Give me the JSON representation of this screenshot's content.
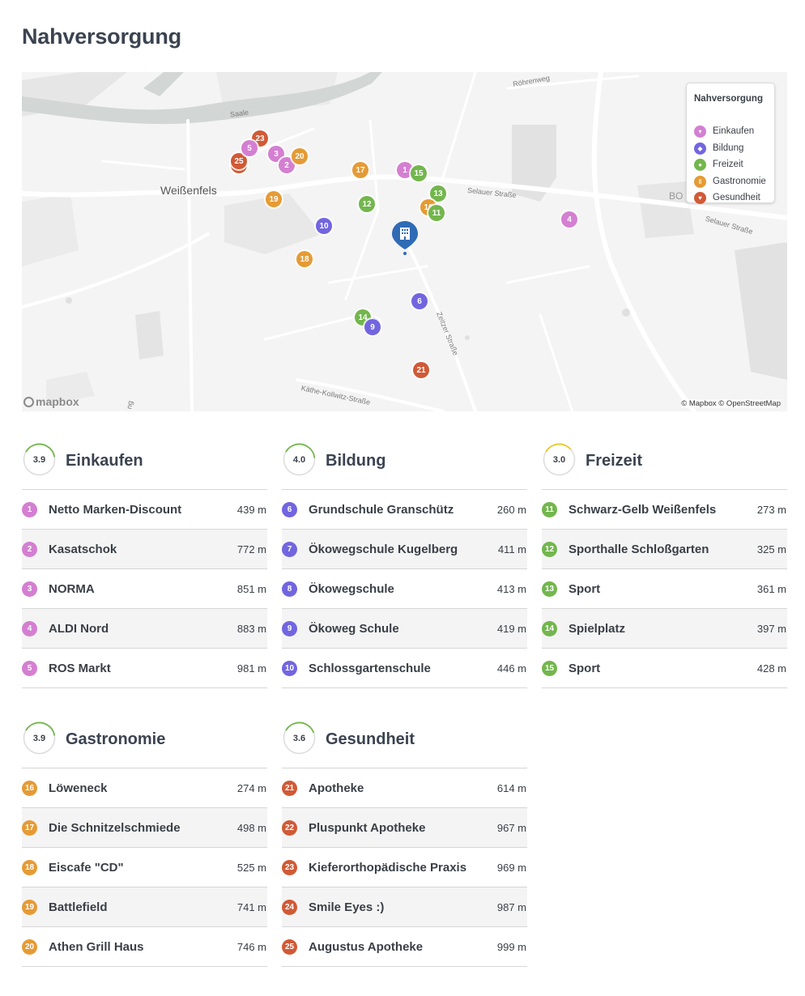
{
  "page": {
    "title": "Nahversorgung"
  },
  "colors": {
    "einkaufen": "#d47fd1",
    "bildung": "#7265e0",
    "freizeit": "#73b64d",
    "gastronomie": "#e59b35",
    "gesundheit": "#d05a36",
    "home": "#2f6bb5"
  },
  "map": {
    "labels": {
      "saale": "Saale",
      "weissenfels": "Weißenfels",
      "roehrenweg": "Röhrenweg",
      "selauer1": "Selauer Straße",
      "selauer2": "Selauer Straße",
      "zeitzer": "Zeitzer Straße",
      "kaethe": "Käthe-Kollwitz-Straße",
      "bo": "BO",
      "edge": "ng"
    },
    "attribution": "© Mapbox © OpenStreetMap",
    "logo_text": "mapbox",
    "home_icon": "building-icon",
    "legend": {
      "title": "Nahversorgung",
      "items": [
        {
          "label": "Einkaufen",
          "icon": "cart-icon"
        },
        {
          "label": "Bildung",
          "icon": "graduation-cap-icon"
        },
        {
          "label": "Freizeit",
          "icon": "leaf-icon"
        },
        {
          "label": "Gastronomie",
          "icon": "restaurant-icon"
        },
        {
          "label": "Gesundheit",
          "icon": "heart-icon"
        }
      ]
    }
  },
  "categories": [
    {
      "title": "Einkaufen",
      "score": "3.9",
      "score_value": 3.9,
      "color_key": "einkaufen",
      "items": [
        {
          "num": "1",
          "name": "Netto Marken-Discount",
          "dist": "439 m"
        },
        {
          "num": "2",
          "name": "Kasatschok",
          "dist": "772 m"
        },
        {
          "num": "3",
          "name": "NORMA",
          "dist": "851 m"
        },
        {
          "num": "4",
          "name": "ALDI Nord",
          "dist": "883 m"
        },
        {
          "num": "5",
          "name": "ROS Markt",
          "dist": "981 m"
        }
      ]
    },
    {
      "title": "Bildung",
      "score": "4.0",
      "score_value": 4.0,
      "color_key": "bildung",
      "items": [
        {
          "num": "6",
          "name": "Grundschule Granschütz",
          "dist": "260 m"
        },
        {
          "num": "7",
          "name": "Ökowegschule Kugelberg",
          "dist": "411 m"
        },
        {
          "num": "8",
          "name": "Ökowegschule",
          "dist": "413 m"
        },
        {
          "num": "9",
          "name": "Ökoweg Schule",
          "dist": "419 m"
        },
        {
          "num": "10",
          "name": "Schlossgartenschule",
          "dist": "446 m"
        }
      ]
    },
    {
      "title": "Freizeit",
      "score": "3.0",
      "score_value": 3.0,
      "color_key": "freizeit",
      "items": [
        {
          "num": "11",
          "name": "Schwarz-Gelb Weißenfels",
          "dist": "273 m"
        },
        {
          "num": "12",
          "name": "Sporthalle Schloßgarten",
          "dist": "325 m"
        },
        {
          "num": "13",
          "name": "Sport",
          "dist": "361 m"
        },
        {
          "num": "14",
          "name": "Spielplatz",
          "dist": "397 m"
        },
        {
          "num": "15",
          "name": "Sport",
          "dist": "428 m"
        }
      ]
    },
    {
      "title": "Gastronomie",
      "score": "3.9",
      "score_value": 3.9,
      "color_key": "gastronomie",
      "items": [
        {
          "num": "16",
          "name": "Löweneck",
          "dist": "274 m"
        },
        {
          "num": "17",
          "name": "Die Schnitzelschmiede",
          "dist": "498 m"
        },
        {
          "num": "18",
          "name": "Eiscafe \"CD\"",
          "dist": "525 m"
        },
        {
          "num": "19",
          "name": "Battlefield",
          "dist": "741 m"
        },
        {
          "num": "20",
          "name": "Athen Grill Haus",
          "dist": "746 m"
        }
      ]
    },
    {
      "title": "Gesundheit",
      "score": "3.6",
      "score_value": 3.6,
      "color_key": "gesundheit",
      "items": [
        {
          "num": "21",
          "name": "Apotheke",
          "dist": "614 m"
        },
        {
          "num": "22",
          "name": "Pluspunkt Apotheke",
          "dist": "967 m"
        },
        {
          "num": "23",
          "name": "Kieferorthopädische Praxis",
          "dist": "969 m"
        },
        {
          "num": "24",
          "name": "Smile Eyes :)",
          "dist": "987 m"
        },
        {
          "num": "25",
          "name": "Augustus Apotheke",
          "dist": "999 m"
        }
      ]
    }
  ]
}
